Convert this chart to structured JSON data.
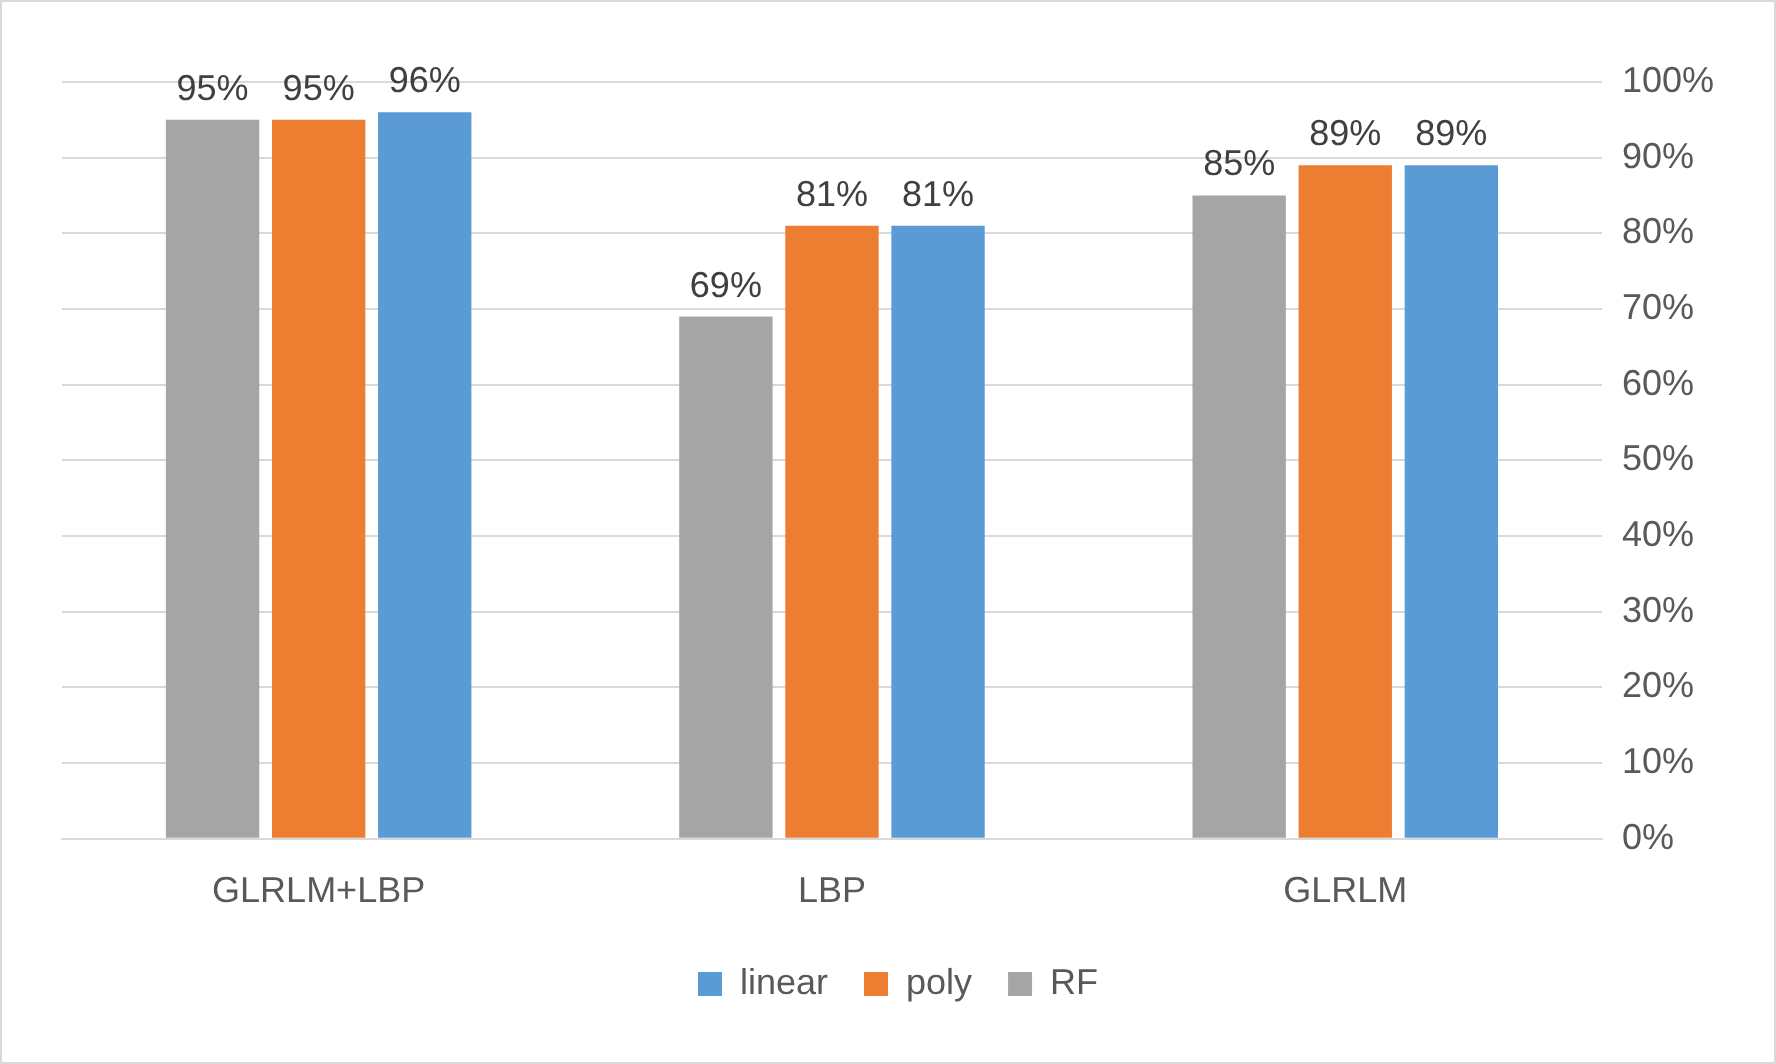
{
  "chart_data": {
    "type": "bar",
    "categories": [
      "GLRLM+LBP",
      "LBP",
      "GLRLM"
    ],
    "series": [
      {
        "name": "RF",
        "color": "#a5a5a5",
        "axis": "y2",
        "values": [
          95,
          69,
          85
        ],
        "value_labels": [
          "95%",
          "69%",
          "85%"
        ]
      },
      {
        "name": "poly",
        "color": "#ed7d31",
        "axis": "y2",
        "values": [
          95,
          81,
          89
        ],
        "value_labels": [
          "95%",
          "81%",
          "89%"
        ]
      },
      {
        "name": "linear",
        "color": "#5b9bd5",
        "axis": "y2",
        "values": [
          96,
          81,
          89
        ],
        "value_labels": [
          "96%",
          "81%",
          "89%"
        ]
      }
    ],
    "y2lim": [
      0,
      100
    ],
    "y2ticks": [
      {
        "value": 0,
        "label": "0%"
      },
      {
        "value": 10,
        "label": "10%"
      },
      {
        "value": 20,
        "label": "20%"
      },
      {
        "value": 30,
        "label": "30%"
      },
      {
        "value": 40,
        "label": "40%"
      },
      {
        "value": 50,
        "label": "50%"
      },
      {
        "value": 60,
        "label": "60%"
      },
      {
        "value": 70,
        "label": "70%"
      },
      {
        "value": 80,
        "label": "80%"
      },
      {
        "value": 90,
        "label": "90%"
      },
      {
        "value": 100,
        "label": "100%"
      }
    ],
    "grid": "y",
    "legend": "bottom"
  }
}
